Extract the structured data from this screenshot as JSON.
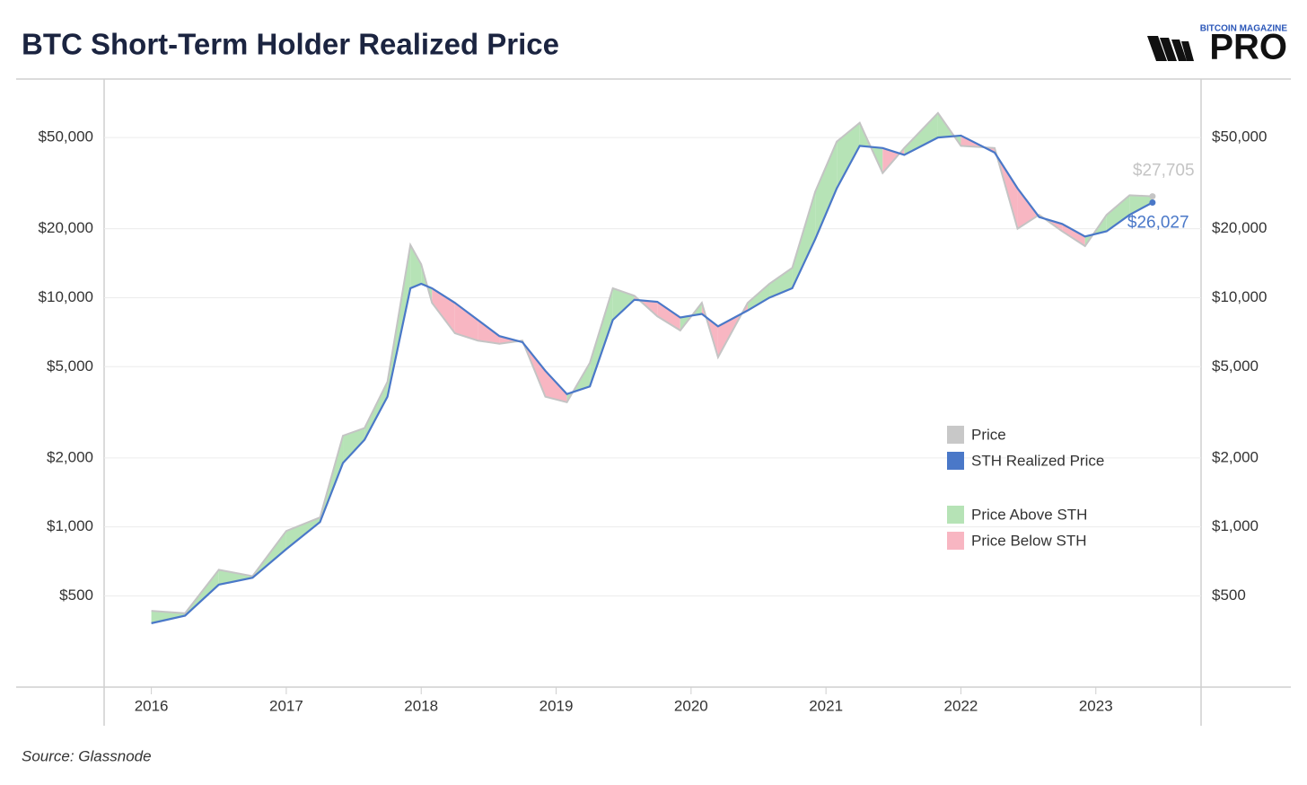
{
  "chart_data": {
    "type": "line",
    "title": "BTC Short-Term Holder Realized Price",
    "logo": {
      "top": "BITCOIN MAGAZINE",
      "main": "PRO"
    },
    "source": "Source: Glassnode",
    "log_y": true,
    "grid": true,
    "legend": "right",
    "x": [
      2016.0,
      2016.25,
      2016.5,
      2016.75,
      2017.0,
      2017.25,
      2017.42,
      2017.58,
      2017.75,
      2017.92,
      2018.0,
      2018.08,
      2018.25,
      2018.42,
      2018.58,
      2018.75,
      2018.92,
      2019.08,
      2019.25,
      2019.42,
      2019.58,
      2019.75,
      2019.92,
      2020.08,
      2020.2,
      2020.42,
      2020.58,
      2020.75,
      2020.92,
      2021.08,
      2021.25,
      2021.42,
      2021.58,
      2021.83,
      2022.0,
      2022.25,
      2022.42,
      2022.58,
      2022.75,
      2022.92,
      2023.08,
      2023.25,
      2023.42
    ],
    "series": [
      {
        "name": "Price",
        "color": "#c4c4c4",
        "values": [
          430,
          420,
          650,
          610,
          960,
          1100,
          2500,
          2700,
          4300,
          17000,
          14000,
          9500,
          7000,
          6500,
          6300,
          6500,
          3700,
          3500,
          5200,
          11000,
          10200,
          8300,
          7200,
          9500,
          5500,
          9500,
          11500,
          13500,
          29000,
          48000,
          58000,
          35000,
          45000,
          64000,
          46000,
          45000,
          20000,
          23000,
          19500,
          16800,
          23000,
          28000,
          27705
        ],
        "value_labels": [
          null,
          null,
          null,
          null,
          null,
          null,
          null,
          null,
          null,
          null,
          null,
          null,
          null,
          null,
          null,
          null,
          null,
          null,
          null,
          null,
          null,
          null,
          null,
          null,
          null,
          null,
          null,
          null,
          null,
          null,
          null,
          null,
          null,
          null,
          null,
          null,
          null,
          null,
          null,
          null,
          null,
          null,
          "$27,705"
        ]
      },
      {
        "name": "STH Realized Price",
        "color": "#4a78c8",
        "values": [
          380,
          410,
          560,
          600,
          800,
          1050,
          1900,
          2400,
          3700,
          11000,
          11500,
          11000,
          9500,
          8000,
          6800,
          6400,
          4800,
          3800,
          4100,
          8000,
          9800,
          9600,
          8200,
          8500,
          7500,
          8800,
          10000,
          11000,
          18000,
          30000,
          46000,
          45000,
          42000,
          50000,
          51000,
          43000,
          30000,
          22500,
          21000,
          18500,
          19500,
          23000,
          26027
        ],
        "value_labels": [
          null,
          null,
          null,
          null,
          null,
          null,
          null,
          null,
          null,
          null,
          null,
          null,
          null,
          null,
          null,
          null,
          null,
          null,
          null,
          null,
          null,
          null,
          null,
          null,
          null,
          null,
          null,
          null,
          null,
          null,
          null,
          null,
          null,
          null,
          null,
          null,
          null,
          null,
          null,
          null,
          null,
          null,
          "$26,027"
        ]
      }
    ],
    "fills": [
      {
        "name": "Price Above STH",
        "color": "#b6e3b6"
      },
      {
        "name": "Price Below STH",
        "color": "#f8b6c2"
      }
    ],
    "xlim": [
      2015.65,
      2023.78
    ],
    "xticks": [
      2016,
      2017,
      2018,
      2019,
      2020,
      2021,
      2022,
      2023
    ],
    "ylim": [
      200,
      90000
    ],
    "yticks": [
      {
        "value": 500,
        "label": "$500"
      },
      {
        "value": 1000,
        "label": "$1,000"
      },
      {
        "value": 2000,
        "label": "$2,000"
      },
      {
        "value": 5000,
        "label": "$5,000"
      },
      {
        "value": 10000,
        "label": "$10,000"
      },
      {
        "value": 20000,
        "label": "$20,000"
      },
      {
        "value": 50000,
        "label": "$50,000"
      }
    ]
  }
}
